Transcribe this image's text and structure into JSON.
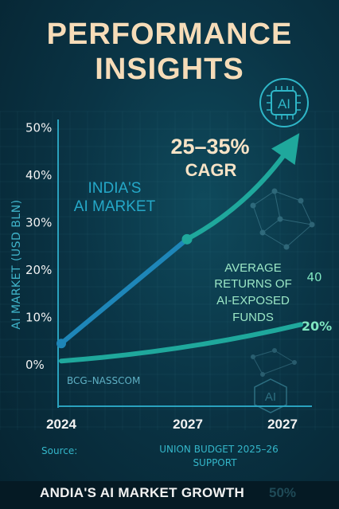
{
  "title_line1": "PERFORMANCE",
  "title_line2": "INSIGHTS",
  "chart_data": {
    "type": "line",
    "ylabel": "AI MARKET (USD BLN)",
    "y_ticks": [
      "50%",
      "40%",
      "30%",
      "20%",
      "10%",
      "0%"
    ],
    "y_tick_values": [
      50,
      40,
      30,
      20,
      10,
      0
    ],
    "x_ticks": [
      "2024",
      "2027",
      "2027"
    ],
    "ylim": [
      0,
      50
    ],
    "series": [
      {
        "name": "INDIA'S AI MARKET",
        "color": "#1e86b8",
        "points": [
          [
            0,
            4.5
          ],
          [
            1,
            26.5
          ],
          [
            1.55,
            48
          ]
        ]
      },
      {
        "name": "AVERAGE RETURNS OF AI-EXPOSED FUNDS",
        "color": "#1fa89c",
        "points": [
          [
            0,
            0.8
          ],
          [
            1,
            4.5
          ],
          [
            2,
            8.5
          ]
        ]
      }
    ],
    "annotations": {
      "cagr_value": "25–35%",
      "cagr_label": "CAGR",
      "market_line1": "INDIA'S",
      "market_line2": "AI MARKET",
      "returns_line1": "AVERAGE",
      "returns_line2": "RETURNS OF",
      "returns_line3": "AI-EXPOSED",
      "returns_line4": "FUNDS",
      "label_40": "40",
      "label_20": "20%",
      "bcg": "BCG–NASSCOM"
    }
  },
  "source_label": "Source:",
  "source_text_line1": "UNION BUDGET 2025–26",
  "source_text_line2": "SUPPORT",
  "ai_badge": "AI",
  "ai_badge_small": "AI",
  "footer_title": "ANDIA'S AI MARKET GROWTH",
  "footer_ghost": "50%"
}
